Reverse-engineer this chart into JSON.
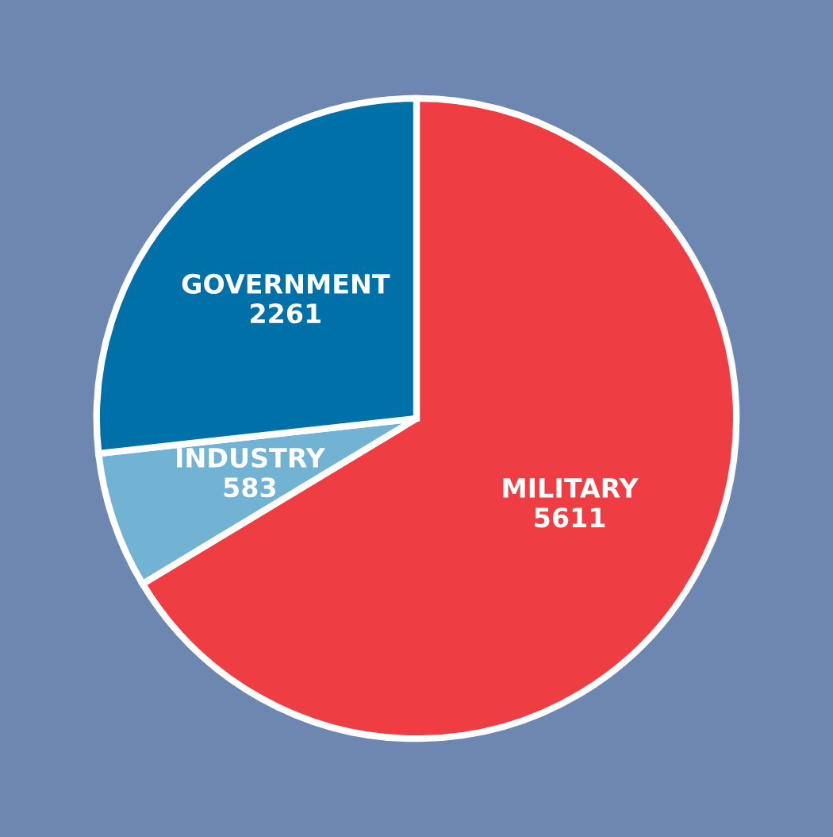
{
  "chart_data": {
    "type": "pie",
    "categories": [
      "MILITARY",
      "INDUSTRY",
      "GOVERNMENT"
    ],
    "values": [
      5611,
      583,
      2261
    ],
    "colors": [
      "#ee3e44",
      "#72b3d4",
      "#0071a8"
    ],
    "data_labels": true
  }
}
